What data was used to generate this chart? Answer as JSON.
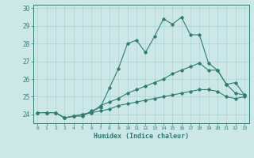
{
  "xlabel": "Humidex (Indice chaleur)",
  "ylabel": "",
  "bg_color": "#cce8e6",
  "line_color": "#2e7d72",
  "grid_color": "#aad4d1",
  "xlim": [
    -0.5,
    23.5
  ],
  "ylim": [
    23.5,
    30.2
  ],
  "xticks": [
    0,
    1,
    2,
    3,
    4,
    5,
    6,
    7,
    8,
    9,
    10,
    11,
    12,
    13,
    14,
    15,
    16,
    17,
    18,
    19,
    20,
    21,
    22,
    23
  ],
  "yticks": [
    24,
    25,
    26,
    27,
    28,
    29,
    30
  ],
  "line1": [
    24.1,
    24.1,
    24.1,
    23.8,
    23.9,
    23.9,
    24.2,
    24.4,
    25.5,
    26.6,
    28.0,
    28.2,
    27.5,
    28.4,
    29.4,
    29.1,
    29.5,
    28.5,
    28.5,
    26.9,
    26.5,
    25.7,
    25.8,
    25.1
  ],
  "line2": [
    24.1,
    24.1,
    24.1,
    23.8,
    23.9,
    24.0,
    24.1,
    24.5,
    24.7,
    24.9,
    25.2,
    25.4,
    25.6,
    25.8,
    26.0,
    26.3,
    26.5,
    26.7,
    26.9,
    26.5,
    26.5,
    25.7,
    25.2,
    25.1
  ],
  "line3": [
    24.1,
    24.1,
    24.1,
    23.8,
    23.9,
    24.0,
    24.1,
    24.2,
    24.3,
    24.5,
    24.6,
    24.7,
    24.8,
    24.9,
    25.0,
    25.1,
    25.2,
    25.3,
    25.4,
    25.4,
    25.3,
    25.0,
    24.9,
    25.0
  ]
}
